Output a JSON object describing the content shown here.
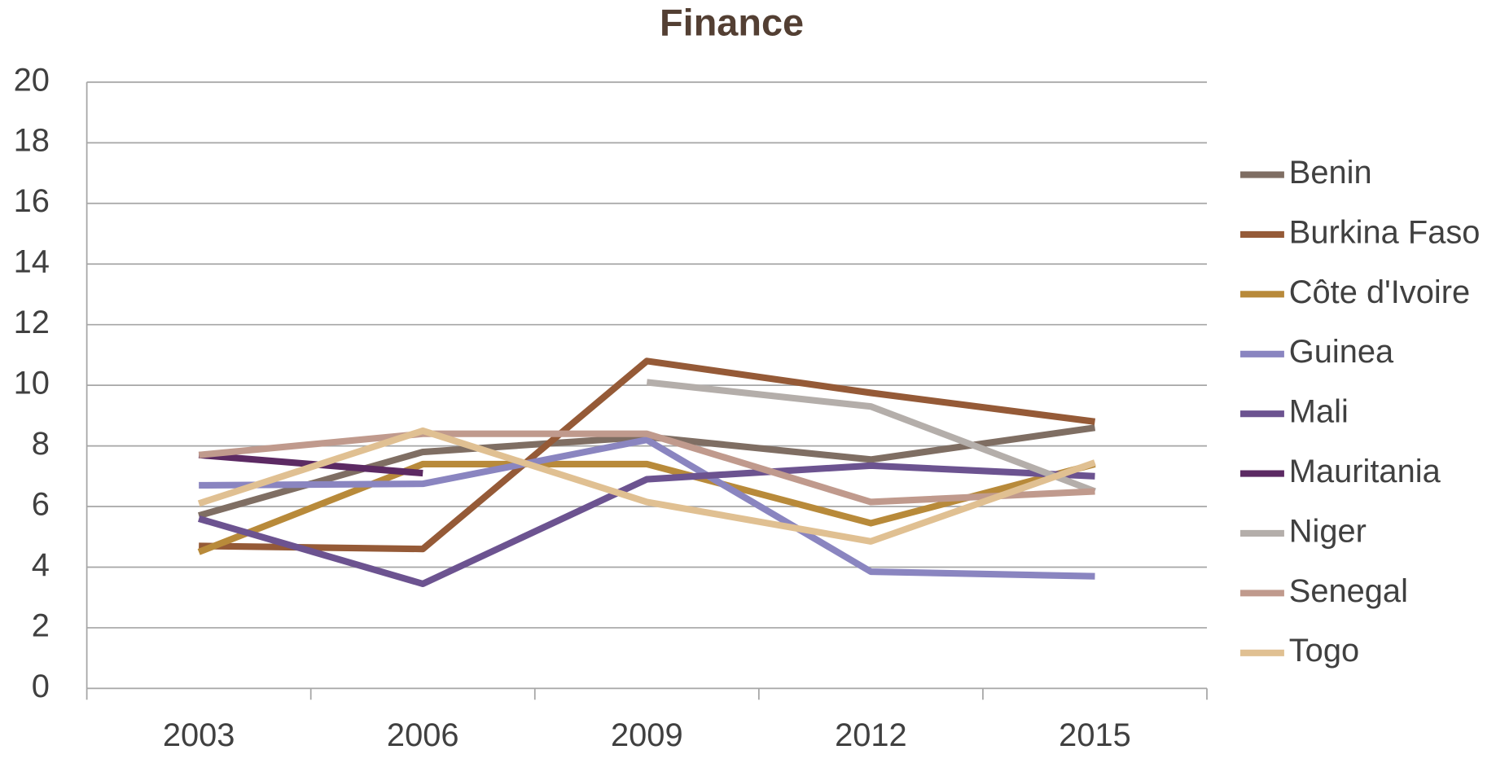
{
  "chart_data": {
    "type": "line",
    "title": "Finance",
    "categories": [
      "2003",
      "2006",
      "2009",
      "2012",
      "2015"
    ],
    "ylim": [
      0,
      20
    ],
    "yticks": [
      0,
      2,
      4,
      6,
      8,
      10,
      12,
      14,
      16,
      18,
      20
    ],
    "grid": true,
    "legend": "right",
    "series": [
      {
        "name": "Benin",
        "color": "#7f6e63",
        "values": [
          5.7,
          7.8,
          8.3,
          7.55,
          8.6
        ]
      },
      {
        "name": "Burkina Faso",
        "color": "#955a37",
        "values": [
          4.7,
          4.6,
          10.8,
          9.75,
          8.8
        ]
      },
      {
        "name": "Côte d'Ivoire",
        "color": "#b88a3a",
        "values": [
          4.5,
          7.4,
          7.4,
          5.45,
          7.4
        ]
      },
      {
        "name": "Guinea",
        "color": "#8a85c0",
        "values": [
          6.7,
          6.75,
          8.2,
          3.85,
          3.7
        ]
      },
      {
        "name": "Mali",
        "color": "#6c5390",
        "values": [
          5.6,
          3.45,
          6.9,
          7.35,
          7.0
        ]
      },
      {
        "name": "Mauritania",
        "color": "#5c2a63",
        "values": [
          7.7,
          7.1,
          null,
          null,
          null
        ]
      },
      {
        "name": "Niger",
        "color": "#b4aeaa",
        "values": [
          null,
          null,
          10.1,
          9.3,
          6.5
        ]
      },
      {
        "name": "Senegal",
        "color": "#c09a8d",
        "values": [
          7.7,
          8.4,
          8.4,
          6.15,
          6.5
        ]
      },
      {
        "name": "Togo",
        "color": "#e0c092",
        "values": [
          6.1,
          8.5,
          6.15,
          4.85,
          7.45
        ]
      }
    ]
  }
}
